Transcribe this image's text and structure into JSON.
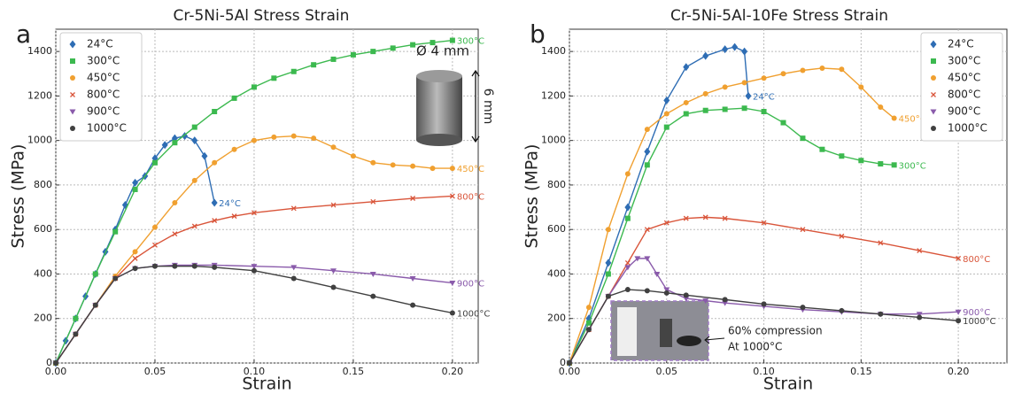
{
  "chart_data": [
    {
      "type": "line",
      "panel_label": "a",
      "title": "Cr-5Ni-5Al Stress Strain",
      "x_label": "Strain",
      "y_label": "Stress (MPa)",
      "xlim": [
        0,
        0.213
      ],
      "ylim": [
        0,
        1500
      ],
      "grid": true,
      "legend": "upper left",
      "xticks": [
        {
          "value": 0,
          "label": "0.00"
        },
        {
          "value": 0.05,
          "label": "0.05"
        },
        {
          "value": 0.1,
          "label": "0.10"
        },
        {
          "value": 0.15,
          "label": "0.15"
        },
        {
          "value": 0.2,
          "label": "0.20"
        }
      ],
      "yticks": [
        0,
        200,
        400,
        600,
        800,
        1000,
        1200,
        1400
      ],
      "annotations": [
        "Ø 4 mm",
        "6 mm"
      ],
      "series": [
        {
          "name": "24°C",
          "color": "#2e6db4",
          "marker": "diamond",
          "x": [
            0,
            0.005,
            0.01,
            0.015,
            0.02,
            0.025,
            0.03,
            0.035,
            0.04,
            0.045,
            0.05,
            0.055,
            0.06,
            0.065,
            0.07,
            0.075,
            0.08
          ],
          "values": [
            0,
            100,
            200,
            300,
            400,
            500,
            600,
            710,
            810,
            840,
            920,
            980,
            1010,
            1020,
            1000,
            930,
            720
          ]
        },
        {
          "name": "300°C",
          "color": "#3cb94f",
          "marker": "square",
          "x": [
            0,
            0.01,
            0.02,
            0.03,
            0.04,
            0.05,
            0.06,
            0.07,
            0.08,
            0.09,
            0.1,
            0.11,
            0.12,
            0.13,
            0.14,
            0.15,
            0.16,
            0.17,
            0.18,
            0.19,
            0.2
          ],
          "values": [
            0,
            200,
            400,
            590,
            780,
            900,
            990,
            1060,
            1130,
            1190,
            1240,
            1280,
            1310,
            1340,
            1365,
            1385,
            1400,
            1415,
            1430,
            1440,
            1450
          ]
        },
        {
          "name": "450°C",
          "color": "#f0a030",
          "marker": "circle",
          "x": [
            0,
            0.01,
            0.02,
            0.03,
            0.04,
            0.05,
            0.06,
            0.07,
            0.08,
            0.09,
            0.1,
            0.11,
            0.12,
            0.13,
            0.14,
            0.15,
            0.16,
            0.17,
            0.18,
            0.19,
            0.2
          ],
          "values": [
            0,
            130,
            260,
            390,
            500,
            610,
            720,
            820,
            900,
            960,
            1000,
            1015,
            1020,
            1010,
            970,
            930,
            900,
            890,
            885,
            875,
            875
          ]
        },
        {
          "name": "800°C",
          "color": "#d9553a",
          "marker": "x",
          "x": [
            0,
            0.01,
            0.02,
            0.03,
            0.04,
            0.05,
            0.06,
            0.07,
            0.08,
            0.09,
            0.1,
            0.12,
            0.14,
            0.16,
            0.18,
            0.2
          ],
          "values": [
            0,
            130,
            260,
            380,
            470,
            530,
            580,
            615,
            640,
            660,
            675,
            695,
            710,
            725,
            740,
            750
          ]
        },
        {
          "name": "900°C",
          "color": "#8a5bab",
          "marker": "triangle",
          "x": [
            0,
            0.01,
            0.02,
            0.03,
            0.04,
            0.05,
            0.06,
            0.07,
            0.08,
            0.1,
            0.12,
            0.14,
            0.16,
            0.18,
            0.2
          ],
          "values": [
            0,
            130,
            260,
            380,
            425,
            435,
            440,
            440,
            440,
            435,
            430,
            415,
            400,
            380,
            360
          ]
        },
        {
          "name": "1000°C",
          "color": "#404040",
          "marker": "circle",
          "x": [
            0,
            0.01,
            0.02,
            0.03,
            0.04,
            0.05,
            0.06,
            0.07,
            0.08,
            0.1,
            0.12,
            0.14,
            0.16,
            0.18,
            0.2
          ],
          "values": [
            0,
            130,
            260,
            380,
            425,
            435,
            435,
            435,
            430,
            415,
            380,
            340,
            300,
            260,
            225
          ]
        }
      ]
    },
    {
      "type": "line",
      "panel_label": "b",
      "title": "Cr-5Ni-5Al-10Fe Stress Strain",
      "x_label": "Strain",
      "y_label": "Stress (MPa)",
      "xlim": [
        0,
        0.225
      ],
      "ylim": [
        0,
        1500
      ],
      "grid": true,
      "legend": "upper right",
      "xticks": [
        {
          "value": 0,
          "label": "0.00"
        },
        {
          "value": 0.05,
          "label": "0.05"
        },
        {
          "value": 0.1,
          "label": "0.10"
        },
        {
          "value": 0.15,
          "label": "0.15"
        },
        {
          "value": 0.2,
          "label": "0.20"
        }
      ],
      "yticks": [
        0,
        200,
        400,
        600,
        800,
        1000,
        1200,
        1400
      ],
      "annotations": [
        "60% compression",
        "At 1000°C"
      ],
      "series": [
        {
          "name": "24°C",
          "color": "#2e6db4",
          "marker": "diamond",
          "x": [
            0,
            0.01,
            0.02,
            0.03,
            0.04,
            0.05,
            0.06,
            0.07,
            0.08,
            0.085,
            0.09,
            0.092
          ],
          "values": [
            0,
            200,
            450,
            700,
            950,
            1180,
            1330,
            1380,
            1410,
            1420,
            1400,
            1200
          ]
        },
        {
          "name": "300°C",
          "color": "#3cb94f",
          "marker": "square",
          "x": [
            0,
            0.01,
            0.02,
            0.03,
            0.04,
            0.05,
            0.06,
            0.07,
            0.08,
            0.09,
            0.1,
            0.11,
            0.12,
            0.13,
            0.14,
            0.15,
            0.16,
            0.167
          ],
          "values": [
            0,
            180,
            400,
            650,
            890,
            1060,
            1120,
            1135,
            1140,
            1145,
            1130,
            1080,
            1010,
            960,
            930,
            910,
            895,
            890
          ]
        },
        {
          "name": "450°C",
          "color": "#f0a030",
          "marker": "circle",
          "x": [
            0,
            0.01,
            0.02,
            0.03,
            0.04,
            0.05,
            0.06,
            0.07,
            0.08,
            0.09,
            0.1,
            0.11,
            0.12,
            0.13,
            0.14,
            0.15,
            0.16,
            0.167
          ],
          "values": [
            0,
            250,
            600,
            850,
            1050,
            1120,
            1170,
            1210,
            1240,
            1260,
            1280,
            1300,
            1315,
            1325,
            1320,
            1240,
            1150,
            1100
          ]
        },
        {
          "name": "800°C",
          "color": "#d9553a",
          "marker": "x",
          "x": [
            0,
            0.01,
            0.02,
            0.03,
            0.04,
            0.05,
            0.06,
            0.07,
            0.08,
            0.1,
            0.12,
            0.14,
            0.16,
            0.18,
            0.2
          ],
          "values": [
            0,
            150,
            300,
            450,
            600,
            630,
            650,
            655,
            650,
            630,
            600,
            570,
            540,
            505,
            470
          ]
        },
        {
          "name": "900°C",
          "color": "#8a5bab",
          "marker": "triangle",
          "x": [
            0,
            0.01,
            0.02,
            0.03,
            0.035,
            0.04,
            0.045,
            0.05,
            0.06,
            0.07,
            0.08,
            0.1,
            0.12,
            0.14,
            0.16,
            0.18,
            0.2
          ],
          "values": [
            0,
            150,
            300,
            430,
            470,
            470,
            400,
            330,
            290,
            280,
            270,
            255,
            240,
            230,
            220,
            220,
            230
          ]
        },
        {
          "name": "1000°C",
          "color": "#404040",
          "marker": "circle",
          "x": [
            0,
            0.01,
            0.02,
            0.03,
            0.04,
            0.05,
            0.06,
            0.08,
            0.1,
            0.12,
            0.14,
            0.16,
            0.18,
            0.2
          ],
          "values": [
            0,
            150,
            300,
            330,
            325,
            315,
            305,
            285,
            265,
            250,
            235,
            220,
            205,
            190
          ]
        }
      ]
    }
  ]
}
